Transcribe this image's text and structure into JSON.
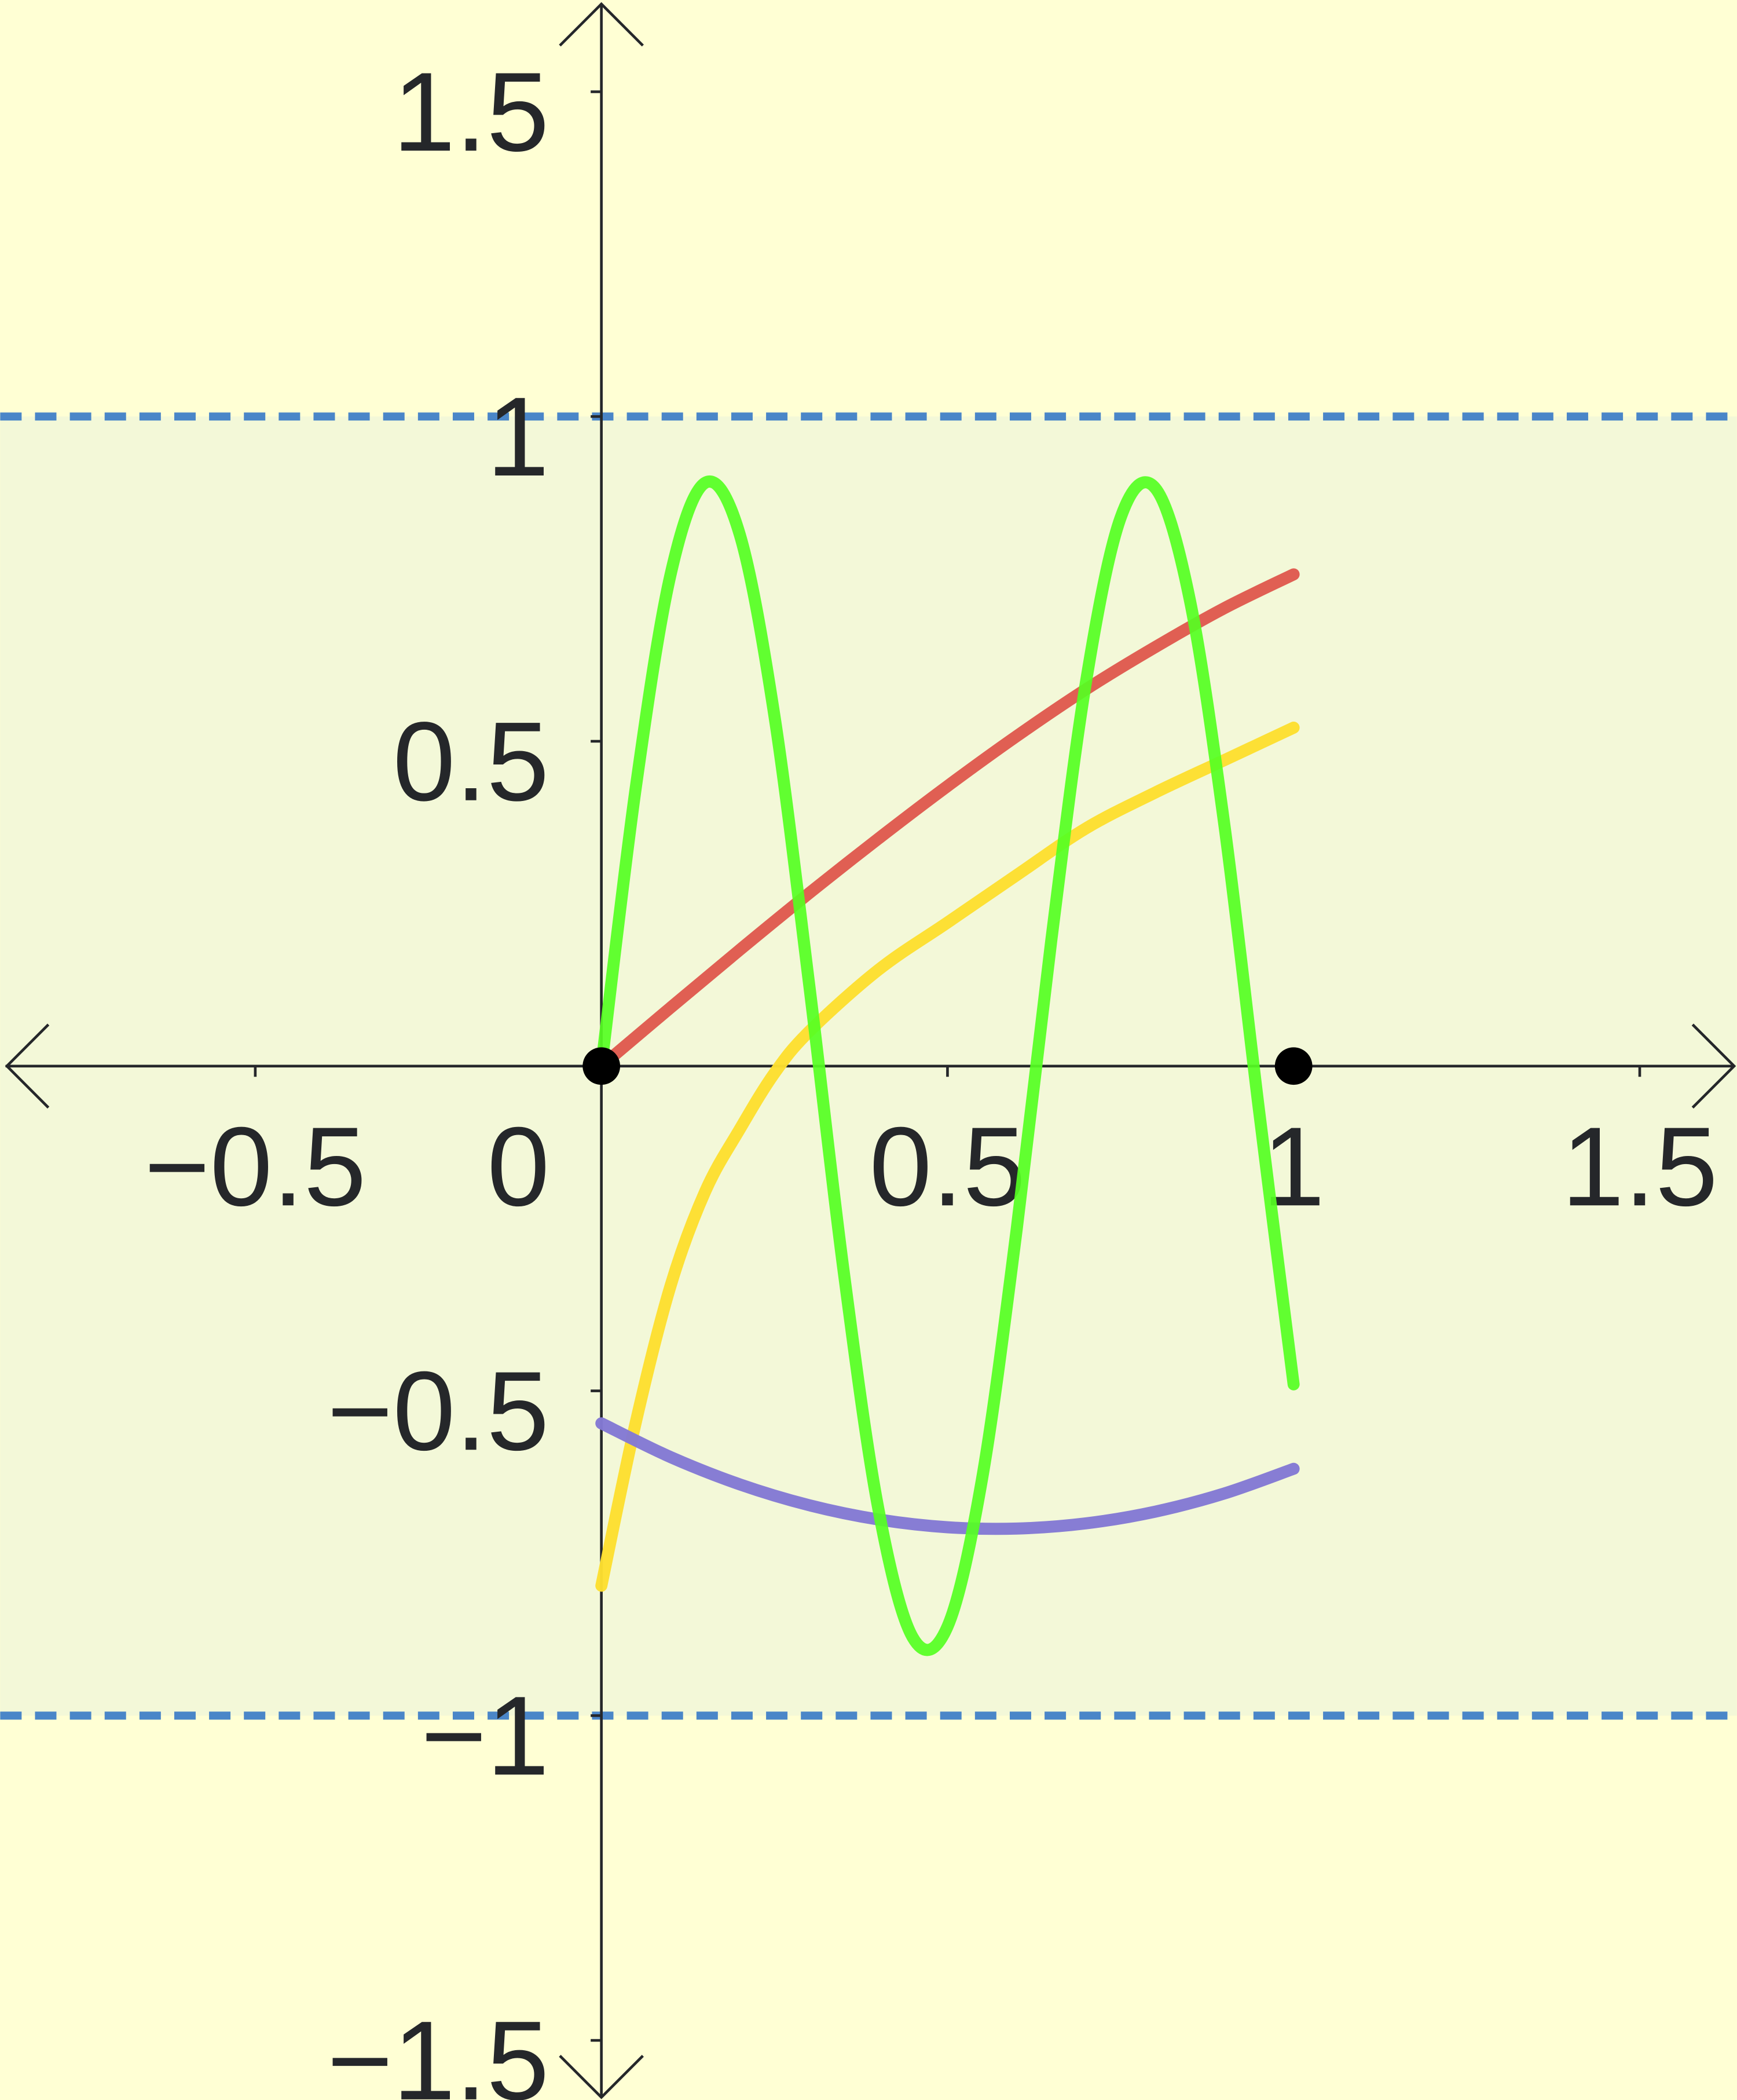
{
  "chart_data": {
    "type": "line",
    "title": "",
    "xlabel": "",
    "ylabel": "",
    "xlim": [
      -0.86,
      1.64
    ],
    "ylim": [
      -1.59,
      1.64
    ],
    "grid": false,
    "x_ticks": [
      {
        "v": -0.5,
        "label": "−0.5"
      },
      {
        "v": 0,
        "label": "0"
      },
      {
        "v": 0.5,
        "label": "0.5"
      },
      {
        "v": 1,
        "label": "1"
      },
      {
        "v": 1.5,
        "label": "1.5"
      }
    ],
    "y_ticks": [
      {
        "v": 1.5,
        "label": "1.5"
      },
      {
        "v": 1,
        "label": "1"
      },
      {
        "v": 0.5,
        "label": "0.5"
      },
      {
        "v": -0.5,
        "label": "−0.5"
      },
      {
        "v": -1,
        "label": "−1"
      },
      {
        "v": -1.5,
        "label": "−1.5"
      }
    ],
    "colors": {
      "background": "#FFFFD4",
      "band": "#F3F8D8",
      "dashed": "#4A86C8",
      "axis": "#25272a"
    },
    "band": {
      "y_from": -1,
      "y_to": 1
    },
    "horizontal_lines": [
      1,
      -1
    ],
    "points": [
      {
        "x": 0,
        "y": 0
      },
      {
        "x": 1,
        "y": 0
      }
    ],
    "series": [
      {
        "color": "#DF5A4E",
        "x": [
          0,
          0.1,
          0.2,
          0.3,
          0.4,
          0.5,
          0.6,
          0.7,
          0.8,
          0.9,
          1
        ],
        "y": [
          0,
          0.09,
          0.179,
          0.266,
          0.35,
          0.431,
          0.508,
          0.58,
          0.645,
          0.705,
          0.757
        ]
      },
      {
        "color": "#FDDF2F",
        "x": [
          0,
          0.05,
          0.1,
          0.15,
          0.2,
          0.25,
          0.3,
          0.4,
          0.5,
          0.6,
          0.7,
          0.8,
          0.9,
          1
        ],
        "y": [
          -0.8,
          -0.547,
          -0.338,
          -0.193,
          -0.097,
          -0.011,
          0.053,
          0.148,
          0.221,
          0.294,
          0.366,
          0.421,
          0.471,
          0.521
        ]
      },
      {
        "color": "#8379D4",
        "x": [
          0,
          0.1,
          0.2,
          0.3,
          0.4,
          0.5,
          0.6,
          0.7,
          0.8,
          0.9,
          1
        ],
        "y": [
          -0.55,
          -0.602,
          -0.644,
          -0.676,
          -0.698,
          -0.71,
          -0.712,
          -0.704,
          -0.686,
          -0.658,
          -0.62
        ]
      },
      {
        "color": "#55FF22",
        "x": [
          0,
          0.05,
          0.1,
          0.15,
          0.2,
          0.25,
          0.3,
          0.35,
          0.4,
          0.45,
          0.5,
          0.55,
          0.6,
          0.65,
          0.7,
          0.75,
          0.8,
          0.85,
          0.9,
          0.95,
          1
        ],
        "y": [
          0,
          0.431,
          0.757,
          0.898,
          0.818,
          0.539,
          0.127,
          -0.316,
          -0.681,
          -0.88,
          -0.863,
          -0.635,
          -0.251,
          0.194,
          0.591,
          0.844,
          0.89,
          0.718,
          0.371,
          -0.068,
          -0.49
        ]
      }
    ]
  }
}
